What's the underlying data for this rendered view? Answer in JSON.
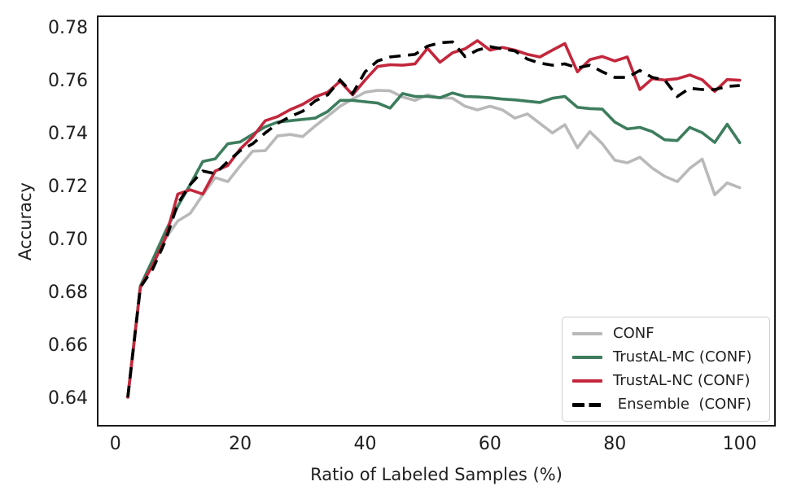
{
  "chart_data": {
    "type": "line",
    "title": "",
    "xlabel": "Ratio of Labeled Samples (%)",
    "ylabel": "Accuracy",
    "x": [
      2,
      4,
      6,
      8,
      10,
      12,
      14,
      16,
      18,
      20,
      22,
      24,
      26,
      28,
      30,
      32,
      34,
      36,
      38,
      40,
      42,
      44,
      46,
      48,
      50,
      52,
      54,
      56,
      58,
      60,
      62,
      64,
      66,
      68,
      70,
      72,
      74,
      76,
      78,
      80,
      82,
      84,
      86,
      88,
      90,
      92,
      94,
      96,
      98,
      100
    ],
    "series": [
      {
        "name": "CONF",
        "color": "#b9b9b9",
        "dash": false,
        "values": [
          0.64,
          0.6815,
          0.69,
          0.7,
          0.7066,
          0.7095,
          0.7165,
          0.723,
          0.7215,
          0.7275,
          0.733,
          0.7332,
          0.7388,
          0.7393,
          0.7385,
          0.7425,
          0.7462,
          0.75,
          0.7527,
          0.7553,
          0.756,
          0.7558,
          0.7535,
          0.7522,
          0.7543,
          0.7532,
          0.753,
          0.75,
          0.7486,
          0.75,
          0.7486,
          0.7455,
          0.7471,
          0.7435,
          0.7399,
          0.743,
          0.7343,
          0.7404,
          0.7358,
          0.7296,
          0.7286,
          0.7307,
          0.7266,
          0.7235,
          0.7215,
          0.7265,
          0.73,
          0.7165,
          0.721,
          0.7192
        ]
      },
      {
        "name": "TrustAL-MC (CONF)",
        "color": "#3d7d5e",
        "dash": false,
        "values": [
          0.64,
          0.682,
          0.692,
          0.7025,
          0.7122,
          0.7204,
          0.7291,
          0.7301,
          0.7358,
          0.7365,
          0.7394,
          0.7422,
          0.744,
          0.7445,
          0.745,
          0.7455,
          0.748,
          0.7522,
          0.7522,
          0.7517,
          0.7512,
          0.7493,
          0.7548,
          0.7537,
          0.7537,
          0.7532,
          0.755,
          0.7537,
          0.7535,
          0.7532,
          0.7527,
          0.7524,
          0.7519,
          0.7514,
          0.753,
          0.7537,
          0.7496,
          0.7491,
          0.7489,
          0.744,
          0.7414,
          0.742,
          0.7404,
          0.7373,
          0.737,
          0.742,
          0.74,
          0.7363,
          0.7432,
          0.7362
        ]
      },
      {
        "name": "TrustAL-NC (CONF)",
        "color": "#c3273c",
        "dash": false,
        "values": [
          0.64,
          0.6815,
          0.69,
          0.7,
          0.7168,
          0.7184,
          0.7168,
          0.7255,
          0.7276,
          0.7338,
          0.7384,
          0.7445,
          0.7461,
          0.7487,
          0.7507,
          0.7535,
          0.7553,
          0.7594,
          0.7543,
          0.7599,
          0.765,
          0.7657,
          0.7655,
          0.766,
          0.7719,
          0.7666,
          0.7702,
          0.7717,
          0.7748,
          0.7712,
          0.7722,
          0.7712,
          0.7696,
          0.7686,
          0.7712,
          0.7737,
          0.763,
          0.7676,
          0.7688,
          0.7671,
          0.7686,
          0.7563,
          0.7604,
          0.7599,
          0.7604,
          0.7618,
          0.76,
          0.7556,
          0.7601,
          0.7598
        ]
      },
      {
        "name": " Ensemble  (CONF)",
        "color": "#000000",
        "dash": true,
        "values": [
          0.64,
          0.6815,
          0.6885,
          0.699,
          0.7132,
          0.7204,
          0.7255,
          0.7245,
          0.7291,
          0.7332,
          0.7358,
          0.7399,
          0.7435,
          0.7461,
          0.7481,
          0.752,
          0.7543,
          0.7599,
          0.7548,
          0.763,
          0.7671,
          0.7686,
          0.7691,
          0.7696,
          0.7727,
          0.774,
          0.7743,
          0.7688,
          0.7712,
          0.7725,
          0.7717,
          0.7709,
          0.7678,
          0.7663,
          0.7655,
          0.766,
          0.7645,
          0.7655,
          0.763,
          0.7609,
          0.7609,
          0.7635,
          0.7609,
          0.7599,
          0.7537,
          0.7568,
          0.7563,
          0.7563,
          0.7575,
          0.7578
        ]
      }
    ],
    "xticks": [
      0,
      20,
      40,
      60,
      80,
      100
    ],
    "yticks": [
      0.64,
      0.66,
      0.68,
      0.7,
      0.72,
      0.74,
      0.76,
      0.78
    ],
    "xlim": [
      -2.83,
      105.65
    ],
    "ylim": [
      0.6292,
      0.784
    ],
    "grid": false,
    "legend_position": "lower right"
  }
}
